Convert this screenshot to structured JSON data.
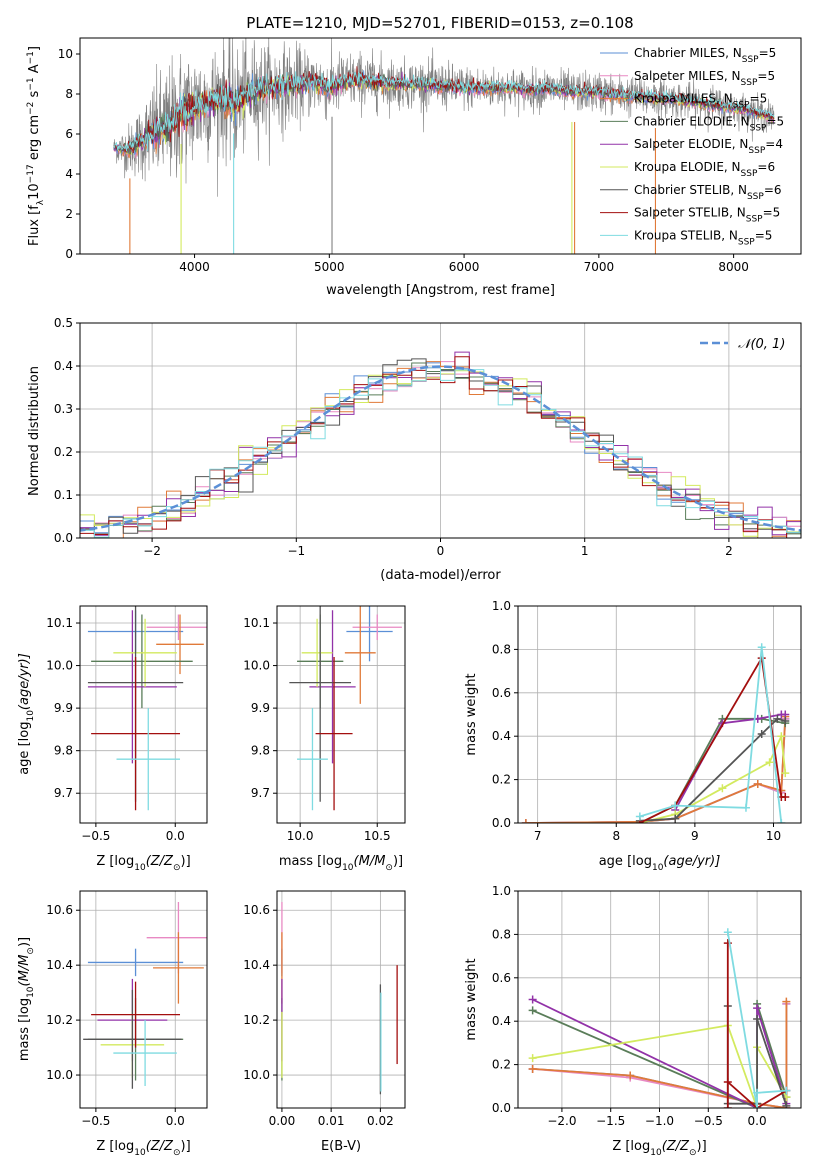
{
  "figure": {
    "title": "PLATE=1210, MJD=52701, FIBERID=0153, z=0.108"
  },
  "colors": {
    "data": "#808080",
    "Chabrier MILES": "#5b8fd6",
    "Salpeter MILES": "#e889c3",
    "Kroupa MILES": "#e07a39",
    "Chabrier ELODIE": "#5a7d59",
    "Salpeter ELODIE": "#9232a8",
    "Kroupa ELODIE": "#d3ea5f",
    "Chabrier STELIB": "#555555",
    "Salpeter STELIB": "#a30f0f",
    "Kroupa STELIB": "#7fdbe1",
    "normal": "#5b8fd6"
  },
  "legend_spectrum": [
    {
      "name": "Chabrier MILES",
      "label": "Chabrier MILES, N",
      "sub": "SSP",
      "tail": "=5"
    },
    {
      "name": "Salpeter MILES",
      "label": "Salpeter MILES, N",
      "sub": "SSP",
      "tail": "=5"
    },
    {
      "name": "Kroupa MILES",
      "label": "Kroupa MILES, N",
      "sub": "SSP",
      "tail": "=5"
    },
    {
      "name": "Chabrier ELODIE",
      "label": "Chabrier ELODIE, N",
      "sub": "SSP",
      "tail": "=5"
    },
    {
      "name": "Salpeter ELODIE",
      "label": "Salpeter ELODIE, N",
      "sub": "SSP",
      "tail": "=4"
    },
    {
      "name": "Kroupa ELODIE",
      "label": "Kroupa ELODIE, N",
      "sub": "SSP",
      "tail": "=6"
    },
    {
      "name": "Chabrier STELIB",
      "label": "Chabrier STELIB, N",
      "sub": "SSP",
      "tail": "=6"
    },
    {
      "name": "Salpeter STELIB",
      "label": "Salpeter STELIB, N",
      "sub": "SSP",
      "tail": "=5"
    },
    {
      "name": "Kroupa STELIB",
      "label": "Kroupa STELIB, N",
      "sub": "SSP",
      "tail": "=5"
    }
  ],
  "legend_hist": {
    "label": "𝒩(0, 1)"
  },
  "chart_data": [
    {
      "id": "spectrum",
      "type": "line",
      "xlabel": "wavelength [Angstrom, rest frame]",
      "ylabel": "Flux [f",
      "ylabel_parts": {
        "a": "Flux [f",
        "sub1": "λ",
        "b": "10",
        "sup1": "−17",
        "c": " erg cm",
        "sup2": "−2",
        "d": " s",
        "sup3": "−1",
        "e": " A",
        "sup4": "−1",
        "f": "]"
      },
      "xlim": [
        3150,
        8500
      ],
      "ylim": [
        0,
        10.8
      ],
      "xticks": [
        4000,
        5000,
        6000,
        7000,
        8000
      ],
      "yticks": [
        0,
        2,
        4,
        6,
        8,
        10
      ],
      "grid": false,
      "legend": "top-right",
      "data_series_x": [
        3400,
        3500,
        3600,
        3700,
        3800,
        3900,
        4000,
        4100,
        4200,
        4300,
        4400,
        4500,
        4600,
        4700,
        4800,
        4900,
        5000,
        5100,
        5200,
        5300,
        5400,
        5500,
        5600,
        5700,
        5800,
        5900,
        6000,
        6100,
        6200,
        6300,
        6400,
        6500,
        6600,
        6700,
        6800,
        6900,
        7000,
        7100,
        7200,
        7300,
        7400,
        7500,
        7600,
        7700,
        7800,
        7900,
        8000,
        8100,
        8200,
        8300
      ],
      "model_y": [
        5.3,
        5.2,
        5.6,
        6.1,
        6.4,
        7.0,
        7.3,
        7.6,
        7.8,
        7.5,
        8.0,
        8.3,
        8.3,
        8.4,
        8.5,
        8.6,
        8.3,
        8.6,
        8.7,
        8.6,
        8.6,
        8.5,
        8.5,
        8.5,
        8.4,
        8.4,
        8.3,
        8.3,
        8.3,
        8.3,
        8.3,
        8.2,
        8.3,
        8.2,
        8.1,
        8.1,
        8.1,
        8.0,
        7.9,
        7.9,
        7.8,
        7.8,
        7.7,
        7.6,
        7.5,
        7.4,
        7.3,
        7.2,
        7.0,
        6.8
      ],
      "noise_amp": [
        0.6,
        1.2,
        1.8,
        2.6,
        3.0,
        3.2,
        3.0,
        2.8,
        2.8,
        3.0,
        2.6,
        2.4,
        2.2,
        2.0,
        1.8,
        1.6,
        1.6,
        1.5,
        1.4,
        1.4,
        1.3,
        1.2,
        1.2,
        1.2,
        1.2,
        1.1,
        1.1,
        1.1,
        1.0,
        1.0,
        1.0,
        1.0,
        1.0,
        1.0,
        1.0,
        1.0,
        1.0,
        1.0,
        1.0,
        1.0,
        1.0,
        0.9,
        0.9,
        0.9,
        0.9,
        0.9,
        0.8,
        0.8,
        0.8,
        0.8
      ],
      "dips": [
        3520,
        3900,
        4290,
        5020,
        6800,
        6820,
        7420
      ]
    },
    {
      "id": "residuals",
      "type": "area",
      "xlabel": "(data-model)/error",
      "ylabel": "Normed distribution",
      "xlim": [
        -2.5,
        2.5
      ],
      "ylim": [
        0,
        0.5
      ],
      "xticks": [
        -2,
        -1,
        0,
        1,
        2
      ],
      "yticks": [
        0,
        0.1,
        0.2,
        0.3,
        0.4,
        0.5
      ],
      "grid": true,
      "legend": "top-right",
      "bin_width": 0.1,
      "normal": {
        "mean": 0,
        "sigma": 1
      }
    },
    {
      "id": "age-vs-Z",
      "type": "scatter",
      "xlabel": "Z [log",
      "xlabel_parts": {
        "a": "Z [log",
        "sub": "10",
        "b": "(Z/Z",
        "sub2": "⊙",
        "c": ")]"
      },
      "ylabel_parts": {
        "a": "age  [log",
        "sub": "10",
        "b": "(age/yr)]"
      },
      "xlim": [
        -0.6,
        0.2
      ],
      "ylim": [
        9.63,
        10.14
      ],
      "xticks": [
        -0.5,
        0.0
      ],
      "yticks": [
        9.7,
        9.8,
        9.9,
        10.0,
        10.1
      ],
      "grid": true,
      "points": [
        {
          "name": "Chabrier MILES",
          "x": -0.25,
          "y": 10.08,
          "xerr": 0.3,
          "yerr": 0.05
        },
        {
          "name": "Salpeter MILES",
          "x": 0.02,
          "y": 10.09,
          "xerr": 0.2,
          "yerr": 0.03
        },
        {
          "name": "Kroupa MILES",
          "x": 0.03,
          "y": 10.05,
          "xerr": 0.15,
          "yerr": 0.07
        },
        {
          "name": "Chabrier ELODIE",
          "x": -0.21,
          "y": 10.01,
          "xerr": 0.32,
          "yerr": 0.11
        },
        {
          "name": "Salpeter ELODIE",
          "x": -0.27,
          "y": 9.95,
          "xerr": 0.28,
          "yerr": 0.18
        },
        {
          "name": "Kroupa ELODIE",
          "x": -0.19,
          "y": 10.03,
          "xerr": 0.2,
          "yerr": 0.08
        },
        {
          "name": "Chabrier STELIB",
          "x": -0.25,
          "y": 9.96,
          "xerr": 0.3,
          "yerr": 0.28
        },
        {
          "name": "Salpeter STELIB",
          "x": -0.25,
          "y": 9.84,
          "xerr": 0.28,
          "yerr": 0.18
        },
        {
          "name": "Kroupa STELIB",
          "x": -0.17,
          "y": 9.78,
          "xerr": 0.2,
          "yerr": 0.12
        }
      ]
    },
    {
      "id": "age-vs-mass",
      "type": "scatter",
      "xlabel_parts": {
        "a": "mass [log",
        "sub": "10",
        "b": "(M/M",
        "sub2": "⊙",
        "c": ")]"
      },
      "xlim": [
        9.85,
        10.68
      ],
      "ylim": [
        9.63,
        10.14
      ],
      "xticks": [
        10.0,
        10.5
      ],
      "yticks": [
        9.7,
        9.8,
        9.9,
        10.0,
        10.1
      ],
      "grid": true,
      "points": [
        {
          "name": "Chabrier MILES",
          "x": 10.45,
          "y": 10.08,
          "xerr": 0.15,
          "yerr": 0.07
        },
        {
          "name": "Salpeter MILES",
          "x": 10.5,
          "y": 10.09,
          "xerr": 0.16,
          "yerr": 0.03
        },
        {
          "name": "Kroupa MILES",
          "x": 10.39,
          "y": 10.03,
          "xerr": 0.1,
          "yerr": 0.12
        },
        {
          "name": "Chabrier ELODIE",
          "x": 10.13,
          "y": 10.01,
          "xerr": 0.15,
          "yerr": 0.11
        },
        {
          "name": "Salpeter ELODIE",
          "x": 10.21,
          "y": 9.95,
          "xerr": 0.15,
          "yerr": 0.18
        },
        {
          "name": "Kroupa ELODIE",
          "x": 10.11,
          "y": 10.03,
          "xerr": 0.1,
          "yerr": 0.08
        },
        {
          "name": "Chabrier STELIB",
          "x": 10.13,
          "y": 9.96,
          "xerr": 0.2,
          "yerr": 0.28
        },
        {
          "name": "Salpeter STELIB",
          "x": 10.22,
          "y": 9.84,
          "xerr": 0.12,
          "yerr": 0.18
        },
        {
          "name": "Kroupa STELIB",
          "x": 10.08,
          "y": 9.78,
          "xerr": 0.1,
          "yerr": 0.12
        }
      ]
    },
    {
      "id": "weight-vs-age",
      "type": "line",
      "xlabel_parts": {
        "a": "age  [log",
        "sub": "10",
        "b": "(age/yr)]"
      },
      "ylabel": "mass weight",
      "xlim": [
        6.75,
        10.35
      ],
      "ylim": [
        0,
        1.0
      ],
      "xticks": [
        7,
        8,
        9,
        10
      ],
      "yticks": [
        0.0,
        0.2,
        0.4,
        0.6,
        0.8,
        1.0
      ],
      "grid": true,
      "series": [
        {
          "name": "Chabrier MILES",
          "x": [
            6.85,
            8.3,
            8.75,
            9.8,
            10.1,
            10.15
          ],
          "y": [
            0.0,
            0.005,
            0.02,
            0.18,
            0.14,
            0.48
          ]
        },
        {
          "name": "Salpeter MILES",
          "x": [
            6.85,
            8.3,
            8.75,
            9.8,
            10.1,
            10.15
          ],
          "y": [
            0.0,
            0.005,
            0.02,
            0.18,
            0.14,
            0.48
          ]
        },
        {
          "name": "Kroupa MILES",
          "x": [
            6.85,
            8.3,
            8.75,
            9.8,
            10.1,
            10.15
          ],
          "y": [
            0.0,
            0.005,
            0.02,
            0.18,
            0.15,
            0.49
          ]
        },
        {
          "name": "Chabrier ELODIE",
          "x": [
            8.3,
            8.75,
            9.35,
            9.85,
            10.15
          ],
          "y": [
            0.0,
            0.08,
            0.48,
            0.48,
            0.46
          ]
        },
        {
          "name": "Salpeter ELODIE",
          "x": [
            8.75,
            9.35,
            9.8,
            10.1,
            10.15
          ],
          "y": [
            0.06,
            0.46,
            0.48,
            0.5,
            0.5
          ]
        },
        {
          "name": "Kroupa ELODIE",
          "x": [
            8.3,
            8.75,
            9.35,
            9.95,
            10.1,
            10.15
          ],
          "y": [
            0.0,
            0.04,
            0.16,
            0.28,
            0.4,
            0.23
          ]
        },
        {
          "name": "Chabrier STELIB",
          "x": [
            8.3,
            8.75,
            9.85,
            10.05,
            10.15
          ],
          "y": [
            0.01,
            0.02,
            0.41,
            0.48,
            0.47
          ]
        },
        {
          "name": "Salpeter STELIB",
          "x": [
            8.3,
            8.75,
            9.85,
            10.1,
            10.15
          ],
          "y": [
            0.0,
            0.08,
            0.76,
            0.12,
            0.12
          ]
        },
        {
          "name": "Kroupa STELIB",
          "x": [
            8.3,
            8.75,
            9.65,
            9.85,
            10.1
          ],
          "y": [
            0.03,
            0.08,
            0.07,
            0.81,
            0.0
          ]
        }
      ]
    },
    {
      "id": "mass-vs-Z",
      "type": "scatter",
      "xlabel_parts": {
        "a": "Z [log",
        "sub": "10",
        "b": "(Z/Z",
        "sub2": "⊙",
        "c": ")]"
      },
      "ylabel_parts": {
        "a": "mass [log",
        "sub": "10",
        "b": "(M/M",
        "sub2": "⊙",
        "c": ")]"
      },
      "xlim": [
        -0.6,
        0.2
      ],
      "ylim": [
        9.88,
        10.67
      ],
      "xticks": [
        -0.5,
        0.0
      ],
      "yticks": [
        10.0,
        10.2,
        10.4,
        10.6
      ],
      "grid": true,
      "points": [
        {
          "name": "Chabrier MILES",
          "x": -0.25,
          "y": 10.41,
          "xerr": 0.3,
          "yerr": 0.05
        },
        {
          "name": "Salpeter MILES",
          "x": 0.02,
          "y": 10.5,
          "xerr": 0.2,
          "yerr": 0.13
        },
        {
          "name": "Kroupa MILES",
          "x": 0.02,
          "y": 10.39,
          "xerr": 0.16,
          "yerr": 0.13
        },
        {
          "name": "Chabrier ELODIE",
          "x": -0.25,
          "y": 10.13,
          "xerr": 0.3,
          "yerr": 0.15
        },
        {
          "name": "Salpeter ELODIE",
          "x": -0.27,
          "y": 10.2,
          "xerr": 0.22,
          "yerr": 0.15
        },
        {
          "name": "Kroupa ELODIE",
          "x": -0.27,
          "y": 10.11,
          "xerr": 0.2,
          "yerr": 0.12
        },
        {
          "name": "Chabrier STELIB",
          "x": -0.27,
          "y": 10.13,
          "xerr": 0.31,
          "yerr": 0.18
        },
        {
          "name": "Salpeter STELIB",
          "x": -0.25,
          "y": 10.22,
          "xerr": 0.28,
          "yerr": 0.12
        },
        {
          "name": "Kroupa STELIB",
          "x": -0.19,
          "y": 10.08,
          "xerr": 0.2,
          "yerr": 0.12
        }
      ]
    },
    {
      "id": "mass-vs-ebv",
      "type": "scatter",
      "xlabel": "E(B-V)",
      "xlim": [
        -0.001,
        0.025
      ],
      "ylim": [
        9.88,
        10.67
      ],
      "xticks": [
        0.0,
        0.01,
        0.02
      ],
      "yticks": [
        10.0,
        10.2,
        10.4,
        10.6
      ],
      "grid": true,
      "points": [
        {
          "name": "Chabrier MILES",
          "x": 0.0,
          "y": 10.41,
          "xerr": 0,
          "yerr": 0.05
        },
        {
          "name": "Salpeter MILES",
          "x": 0.0,
          "y": 10.5,
          "xerr": 0,
          "yerr": 0.13
        },
        {
          "name": "Kroupa MILES",
          "x": 0.0,
          "y": 10.39,
          "xerr": 0,
          "yerr": 0.13
        },
        {
          "name": "Chabrier ELODIE",
          "x": 0.0,
          "y": 10.13,
          "xerr": 0,
          "yerr": 0.15
        },
        {
          "name": "Salpeter ELODIE",
          "x": 0.0,
          "y": 10.2,
          "xerr": 0,
          "yerr": 0.15
        },
        {
          "name": "Kroupa ELODIE",
          "x": 0.0,
          "y": 10.11,
          "xerr": 0,
          "yerr": 0.12
        },
        {
          "name": "Chabrier STELIB",
          "x": 0.02,
          "y": 10.13,
          "xerr": 0,
          "yerr": 0.2
        },
        {
          "name": "Salpeter STELIB",
          "x": 0.0234,
          "y": 10.22,
          "xerr": 0,
          "yerr": 0.18
        },
        {
          "name": "Kroupa STELIB",
          "x": 0.0201,
          "y": 10.12,
          "xerr": 0,
          "yerr": 0.18
        }
      ]
    },
    {
      "id": "weight-vs-Z",
      "type": "line",
      "xlabel_parts": {
        "a": "Z [log",
        "sub": "10",
        "b": "(Z/Z",
        "sub2": "⊙",
        "c": ")]"
      },
      "ylabel": "mass weight",
      "xlim": [
        -2.45,
        0.45
      ],
      "ylim": [
        0,
        1.0
      ],
      "xticks": [
        -2.0,
        -1.5,
        -1.0,
        -0.5,
        0.0
      ],
      "yticks": [
        0.0,
        0.2,
        0.4,
        0.6,
        0.8,
        1.0
      ],
      "grid": true,
      "series": [
        {
          "name": "Chabrier MILES",
          "x": [
            -2.3,
            -1.3,
            0.0,
            0.3,
            0.3
          ],
          "y": [
            0.18,
            0.15,
            0.02,
            0.0,
            0.48
          ]
        },
        {
          "name": "Salpeter MILES",
          "x": [
            -2.3,
            -1.3,
            0.0,
            0.3,
            0.3
          ],
          "y": [
            0.18,
            0.14,
            0.02,
            0.0,
            0.48
          ]
        },
        {
          "name": "Kroupa MILES",
          "x": [
            -2.3,
            -1.3,
            0.0,
            0.3,
            0.3
          ],
          "y": [
            0.18,
            0.15,
            0.02,
            0.0,
            0.49
          ]
        },
        {
          "name": "Chabrier ELODIE",
          "x": [
            -2.3,
            0.0,
            0.0,
            0.3
          ],
          "y": [
            0.45,
            0.0,
            0.48,
            0.05
          ]
        },
        {
          "name": "Salpeter ELODIE",
          "x": [
            -2.3,
            0.0,
            0.0,
            0.3
          ],
          "y": [
            0.5,
            0.0,
            0.46,
            0.02
          ]
        },
        {
          "name": "Kroupa ELODIE",
          "x": [
            -2.3,
            -0.3,
            0.0,
            0.0,
            0.3
          ],
          "y": [
            0.23,
            0.38,
            0.0,
            0.28,
            0.05
          ]
        },
        {
          "name": "Chabrier STELIB",
          "x": [
            -0.3,
            -0.3,
            0.0,
            0.0,
            0.3
          ],
          "y": [
            0.47,
            0.02,
            0.02,
            0.41,
            0.01
          ]
        },
        {
          "name": "Salpeter STELIB",
          "x": [
            -0.3,
            -0.3,
            -0.3,
            0.0,
            0.3
          ],
          "y": [
            0.0,
            0.76,
            0.12,
            0.0,
            0.08
          ]
        },
        {
          "name": "Kroupa STELIB",
          "x": [
            -0.3,
            0.0,
            0.0,
            0.3
          ],
          "y": [
            0.81,
            0.0,
            0.07,
            0.08
          ]
        }
      ]
    }
  ]
}
